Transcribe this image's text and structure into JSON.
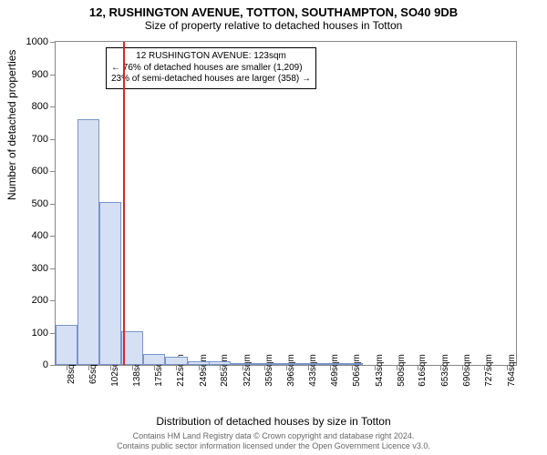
{
  "title_main": "12, RUSHINGTON AVENUE, TOTTON, SOUTHAMPTON, SO40 9DB",
  "title_sub": "Size of property relative to detached houses in Totton",
  "ylabel": "Number of detached properties",
  "xlabel": "Distribution of detached houses by size in Totton",
  "credits_line1": "Contains HM Land Registry data © Crown copyright and database right 2024.",
  "credits_line2": "Contains public sector information licensed under the Open Government Licence v3.0.",
  "annotation": {
    "line1": "12 RUSHINGTON AVENUE: 123sqm",
    "line2": "← 76% of detached houses are smaller (1,209)",
    "line3": "23% of semi-detached houses are larger (358) →"
  },
  "chart": {
    "type": "histogram",
    "background_color": "#ffffff",
    "border_color": "#888888",
    "bar_fill": "#d6e0f4",
    "bar_stroke": "#7a94c9",
    "marker_color": "#d62728",
    "marker_x": 123,
    "x_min": 10,
    "x_max": 780,
    "y_min": 0,
    "y_max": 1000,
    "y_ticks": [
      0,
      100,
      200,
      300,
      400,
      500,
      600,
      700,
      800,
      900,
      1000
    ],
    "x_ticks": [
      28,
      65,
      102,
      138,
      175,
      212,
      249,
      285,
      322,
      359,
      396,
      433,
      469,
      506,
      543,
      580,
      616,
      653,
      690,
      727,
      764
    ],
    "x_tick_suffix": "sqm",
    "bar_width_units": 37,
    "bars": [
      {
        "x": 28,
        "y": 125
      },
      {
        "x": 65,
        "y": 760
      },
      {
        "x": 102,
        "y": 505
      },
      {
        "x": 138,
        "y": 105
      },
      {
        "x": 175,
        "y": 35
      },
      {
        "x": 212,
        "y": 25
      },
      {
        "x": 249,
        "y": 12
      },
      {
        "x": 285,
        "y": 10
      },
      {
        "x": 322,
        "y": 5
      },
      {
        "x": 359,
        "y": 3
      },
      {
        "x": 396,
        "y": 2
      },
      {
        "x": 433,
        "y": 1
      },
      {
        "x": 469,
        "y": 1
      },
      {
        "x": 506,
        "y": 1
      },
      {
        "x": 543,
        "y": 0
      },
      {
        "x": 580,
        "y": 0
      },
      {
        "x": 616,
        "y": 0
      },
      {
        "x": 653,
        "y": 0
      },
      {
        "x": 690,
        "y": 0
      },
      {
        "x": 727,
        "y": 0
      },
      {
        "x": 764,
        "y": 0
      }
    ],
    "tick_fontsize": 10,
    "label_fontsize": 12,
    "title_fontsize": 13
  }
}
